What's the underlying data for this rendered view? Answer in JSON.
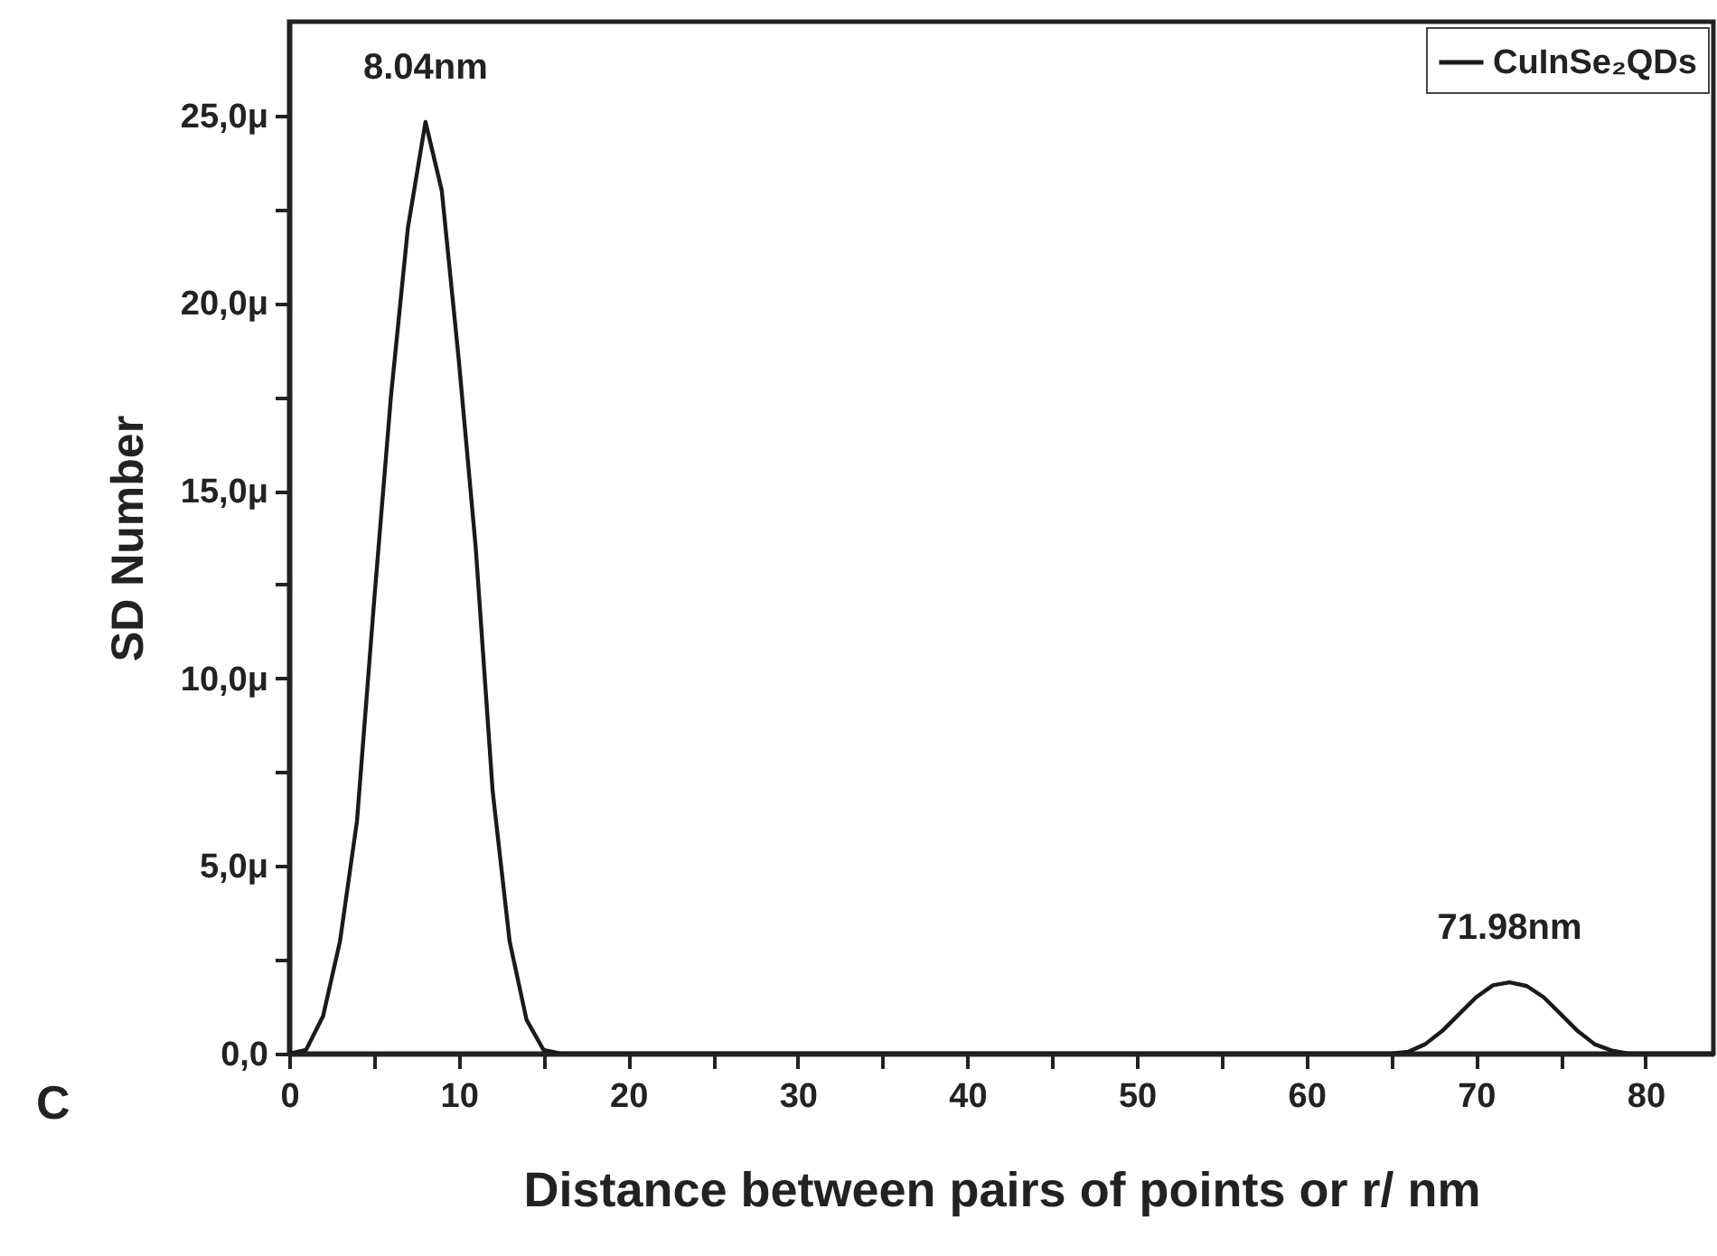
{
  "chart_data": {
    "type": "line",
    "xlabel": "Distance between pairs of points or r/ nm",
    "ylabel": "SD Number",
    "x": [
      0,
      1,
      2,
      3,
      4,
      5,
      6,
      7,
      8.04,
      9,
      10,
      11,
      12,
      13,
      14,
      15,
      16,
      30,
      50,
      65,
      66,
      67,
      68,
      69,
      70,
      71,
      71.98,
      73,
      74,
      75,
      76,
      77,
      78,
      79,
      84
    ],
    "series": [
      {
        "name": "CuInSe₂QDs",
        "color": "#1a1a1a",
        "values": [
          0,
          0.1,
          1.0,
          3.0,
          6.2,
          12.0,
          17.5,
          22.0,
          24.83,
          23.0,
          18.5,
          13.5,
          7.0,
          3.0,
          0.9,
          0.1,
          0,
          0,
          0,
          0,
          0.05,
          0.25,
          0.6,
          1.05,
          1.5,
          1.82,
          1.9,
          1.8,
          1.5,
          1.05,
          0.6,
          0.25,
          0.08,
          0,
          0
        ]
      }
    ],
    "xlim": [
      0,
      84
    ],
    "xticks": [
      0,
      {
        "value": 5,
        "label": null
      },
      10,
      {
        "value": 15,
        "label": null
      },
      20,
      {
        "value": 25,
        "label": null
      },
      30,
      {
        "value": 35,
        "label": null
      },
      40,
      {
        "value": 45,
        "label": null
      },
      50,
      {
        "value": 55,
        "label": null
      },
      60,
      {
        "value": 65,
        "label": null
      },
      70,
      {
        "value": 75,
        "label": null
      },
      80
    ],
    "ylim": [
      0,
      27.5
    ],
    "yticks": [
      {
        "value": 0,
        "label": "0,0"
      },
      {
        "value": 2.5,
        "label": null
      },
      {
        "value": 5,
        "label": "5,0μ"
      },
      {
        "value": 7.5,
        "label": null
      },
      {
        "value": 10,
        "label": "10,0μ"
      },
      {
        "value": 12.5,
        "label": null
      },
      {
        "value": 15,
        "label": "15,0μ"
      },
      {
        "value": 17.5,
        "label": null
      },
      {
        "value": 20,
        "label": "20,0μ"
      },
      {
        "value": 22.5,
        "label": null
      },
      {
        "value": 25,
        "label": "25,0μ"
      }
    ],
    "annotations": [
      {
        "text": "8.04nm",
        "x": 8.04,
        "y": 24.83
      },
      {
        "text": "71.98nm",
        "x": 71.98,
        "y": 1.9
      },
      "C"
    ],
    "legend": "top right",
    "line_style": "solid",
    "marker": "none",
    "grid": false
  }
}
